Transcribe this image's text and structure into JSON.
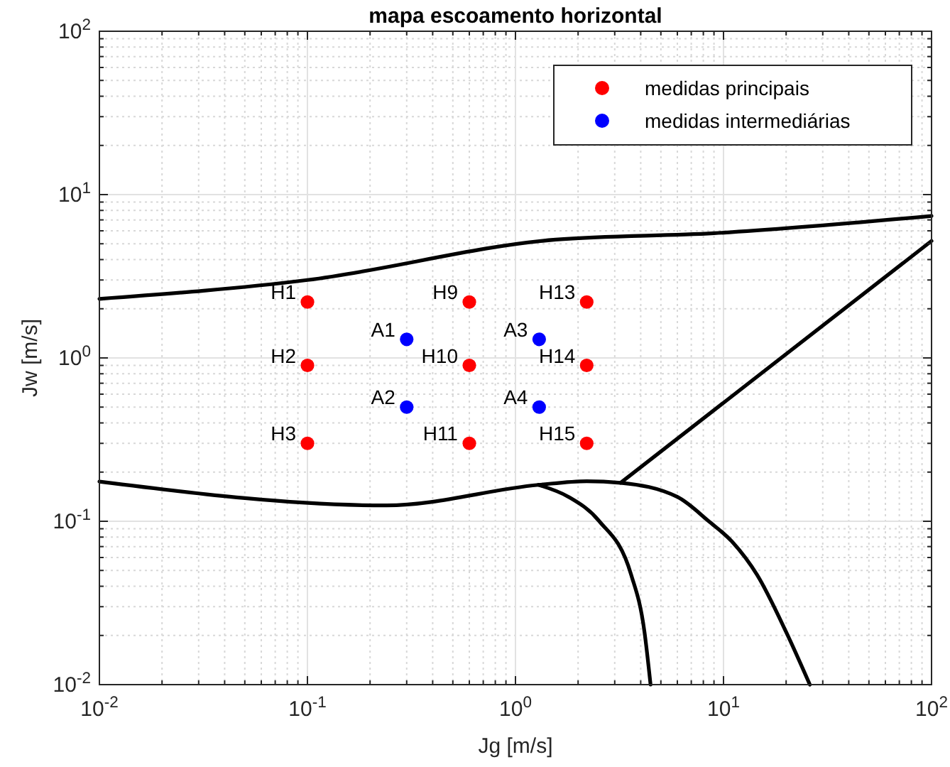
{
  "chart_data": {
    "type": "scatter",
    "title": "mapa escoamento horizontal",
    "xlabel": "Jg [m/s]",
    "ylabel": "Jw [m/s]",
    "log": "xy",
    "grid": true,
    "legend": "top right",
    "marker": "circle",
    "xlim": [
      0.01,
      100
    ],
    "ylim": [
      0.01,
      100
    ],
    "xticks": [
      {
        "value": 0.01,
        "label": "10$^{-2}$"
      },
      {
        "value": 0.1,
        "label": "10$^{-1}$"
      },
      {
        "value": 1,
        "label": "10$^{0}$"
      },
      {
        "value": 10,
        "label": "10$^{1}$"
      },
      {
        "value": 100,
        "label": "10$^{2}$"
      }
    ],
    "yticks": [
      {
        "value": 0.01,
        "label": "10$^{-2}$"
      },
      {
        "value": 0.1,
        "label": "10$^{-1}$"
      },
      {
        "value": 1,
        "label": "10$^{0}$"
      },
      {
        "value": 10,
        "label": "10$^{1}$"
      },
      {
        "value": 100,
        "label": "10$^{2}$"
      }
    ],
    "series": [
      {
        "type": "line",
        "color": "#000000",
        "line_style": "solid",
        "marker": "none",
        "x": [
          0.01,
          0.1,
          1.56,
          9,
          100
        ],
        "values": [
          2.3,
          3.0,
          5.3,
          5.8,
          7.4
        ]
      },
      {
        "type": "line",
        "color": "#000000",
        "line_style": "solid",
        "marker": "none",
        "x": [
          3.2,
          100
        ],
        "values": [
          0.172,
          5.2
        ]
      },
      {
        "type": "line",
        "color": "#000000",
        "line_style": "solid",
        "marker": "none",
        "x": [
          0.01,
          0.24,
          1.29,
          2.2,
          3.2,
          6,
          8.5,
          11,
          14.5,
          20,
          26
        ],
        "values": [
          0.175,
          0.125,
          0.167,
          0.176,
          0.172,
          0.141,
          0.1,
          0.075,
          0.047,
          0.021,
          0.01
        ]
      },
      {
        "type": "line",
        "color": "#000000",
        "line_style": "solid",
        "marker": "none",
        "x": [
          1.29,
          1.8,
          2.53,
          3.6,
          4.17,
          4.46
        ],
        "values": [
          0.167,
          0.141,
          0.1,
          0.047,
          0.021,
          0.01
        ]
      },
      {
        "name": "medidas principais",
        "color": "#ff0000",
        "x": [
          0.1,
          0.1,
          0.1,
          0.6,
          0.6,
          0.6,
          2.2,
          2.2,
          2.2
        ],
        "values": [
          2.2,
          0.9,
          0.3,
          2.2,
          0.9,
          0.3,
          2.2,
          0.9,
          0.3
        ]
      },
      {
        "name": "medidas intermediárias",
        "color": "#0000ff",
        "x": [
          0.3,
          0.3,
          1.3,
          1.3
        ],
        "values": [
          1.3,
          0.5,
          1.3,
          0.5
        ]
      }
    ],
    "annotations": [
      {
        "text": "H1",
        "x": 0.1,
        "y": 2.2
      },
      {
        "text": "H2",
        "x": 0.1,
        "y": 0.9
      },
      {
        "text": "H3",
        "x": 0.1,
        "y": 0.3
      },
      {
        "text": "H9",
        "x": 0.6,
        "y": 2.2
      },
      {
        "text": "H10",
        "x": 0.6,
        "y": 0.9
      },
      {
        "text": "H11",
        "x": 0.6,
        "y": 0.3
      },
      {
        "text": "H13",
        "x": 2.2,
        "y": 2.2
      },
      {
        "text": "H14",
        "x": 2.2,
        "y": 0.9
      },
      {
        "text": "H15",
        "x": 2.2,
        "y": 0.3
      },
      {
        "text": "A1",
        "x": 0.3,
        "y": 1.3
      },
      {
        "text": "A2",
        "x": 0.3,
        "y": 0.5
      },
      {
        "text": "A3",
        "x": 1.3,
        "y": 1.3
      },
      {
        "text": "A4",
        "x": 1.3,
        "y": 0.5
      }
    ]
  }
}
